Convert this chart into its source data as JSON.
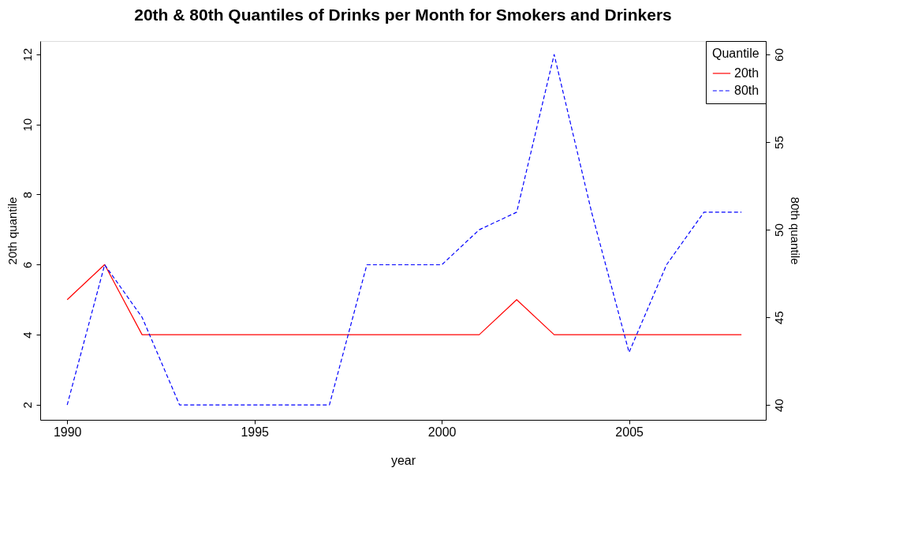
{
  "chart_data": {
    "type": "line",
    "title": "20th & 80th Quantiles of Drinks per Month for Smokers and Drinkers",
    "xlabel": "year",
    "ylabel": "20th quantile",
    "y2label": "80th quantile",
    "legend_title": "Quantile",
    "x": [
      1990,
      1991,
      1992,
      1993,
      1994,
      1995,
      1996,
      1997,
      1998,
      1999,
      2000,
      2001,
      2002,
      2003,
      2004,
      2005,
      2006,
      2007,
      2008
    ],
    "series": [
      {
        "name": "20th",
        "color": "#ff0000",
        "line_style": "solid",
        "values": [
          5,
          6,
          4,
          4,
          4,
          4,
          4,
          4,
          4,
          4,
          4,
          4,
          5,
          4,
          4,
          4,
          4,
          4,
          4
        ]
      },
      {
        "name": "80th",
        "color": "#0000ff",
        "line_style": "dashed",
        "axis": "y2",
        "values": [
          40,
          48,
          45,
          40,
          40,
          40,
          40,
          40,
          48,
          48,
          48,
          50,
          51,
          60,
          51,
          43,
          48,
          51,
          51
        ]
      }
    ],
    "xlim": [
      1989.28,
      2008.65
    ],
    "xticks": [
      1990,
      1995,
      2000,
      2005
    ],
    "ylim": [
      1.57,
      12.38
    ],
    "yticks": [
      2,
      4,
      6,
      8,
      10,
      12
    ],
    "y2lim": [
      39.15,
      60.77
    ],
    "y2ticks": [
      40,
      45,
      50,
      55,
      60
    ],
    "grid": false,
    "legend": "top right",
    "marker": "none"
  }
}
